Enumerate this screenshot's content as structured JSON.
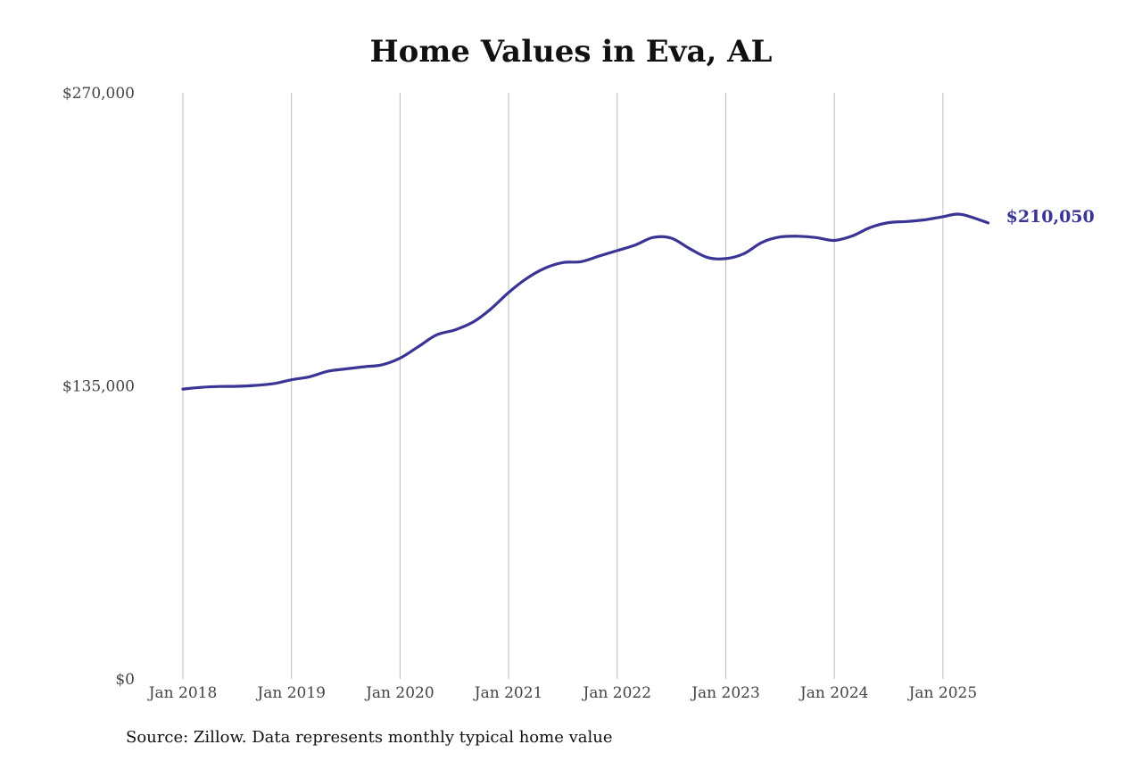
{
  "chart_data": {
    "type": "line",
    "title": "Home Values in Eva, AL",
    "xlabel": "",
    "ylabel": "",
    "ylim": [
      0,
      270000
    ],
    "xlim": [
      "2018-01",
      "2025-06"
    ],
    "y_ticks": [
      {
        "value": 0,
        "label": "$0"
      },
      {
        "value": 135000,
        "label": "$135,000"
      },
      {
        "value": 270000,
        "label": "$270,000"
      }
    ],
    "x_ticks": [
      {
        "value": "2018-01",
        "label": "Jan 2018"
      },
      {
        "value": "2019-01",
        "label": "Jan 2019"
      },
      {
        "value": "2020-01",
        "label": "Jan 2020"
      },
      {
        "value": "2021-01",
        "label": "Jan 2021"
      },
      {
        "value": "2022-01",
        "label": "Jan 2022"
      },
      {
        "value": "2023-01",
        "label": "Jan 2023"
      },
      {
        "value": "2024-01",
        "label": "Jan 2024"
      },
      {
        "value": "2025-01",
        "label": "Jan 2025"
      }
    ],
    "grid": {
      "vertical": true,
      "horizontal": false
    },
    "series": [
      {
        "color": "#3a3494",
        "end_label": "$210,050",
        "points": [
          [
            "2018-01",
            133500
          ],
          [
            "2018-03",
            134300
          ],
          [
            "2018-05",
            134700
          ],
          [
            "2018-07",
            134800
          ],
          [
            "2018-09",
            135200
          ],
          [
            "2018-11",
            136000
          ],
          [
            "2019-01",
            137800
          ],
          [
            "2019-03",
            139200
          ],
          [
            "2019-05",
            141700
          ],
          [
            "2019-07",
            142800
          ],
          [
            "2019-09",
            143800
          ],
          [
            "2019-11",
            144700
          ],
          [
            "2020-01",
            147800
          ],
          [
            "2020-03",
            153000
          ],
          [
            "2020-05",
            158400
          ],
          [
            "2020-07",
            160700
          ],
          [
            "2020-09",
            164200
          ],
          [
            "2020-11",
            170300
          ],
          [
            "2021-01",
            178000
          ],
          [
            "2021-03",
            184500
          ],
          [
            "2021-05",
            189200
          ],
          [
            "2021-07",
            191800
          ],
          [
            "2021-09",
            192200
          ],
          [
            "2021-11",
            194800
          ],
          [
            "2022-01",
            197300
          ],
          [
            "2022-03",
            199900
          ],
          [
            "2022-05",
            203400
          ],
          [
            "2022-07",
            203000
          ],
          [
            "2022-09",
            198200
          ],
          [
            "2022-11",
            194100
          ],
          [
            "2023-01",
            193600
          ],
          [
            "2023-03",
            195900
          ],
          [
            "2023-05",
            201100
          ],
          [
            "2023-07",
            203600
          ],
          [
            "2023-09",
            203900
          ],
          [
            "2023-11",
            203300
          ],
          [
            "2024-01",
            202000
          ],
          [
            "2024-03",
            204100
          ],
          [
            "2024-05",
            208000
          ],
          [
            "2024-07",
            210200
          ],
          [
            "2024-09",
            210700
          ],
          [
            "2024-11",
            211500
          ],
          [
            "2025-01",
            212900
          ],
          [
            "2025-03",
            214000
          ],
          [
            "2025-06",
            210050
          ]
        ]
      }
    ]
  },
  "source_note": "Source: Zillow. Data represents monthly typical home value"
}
